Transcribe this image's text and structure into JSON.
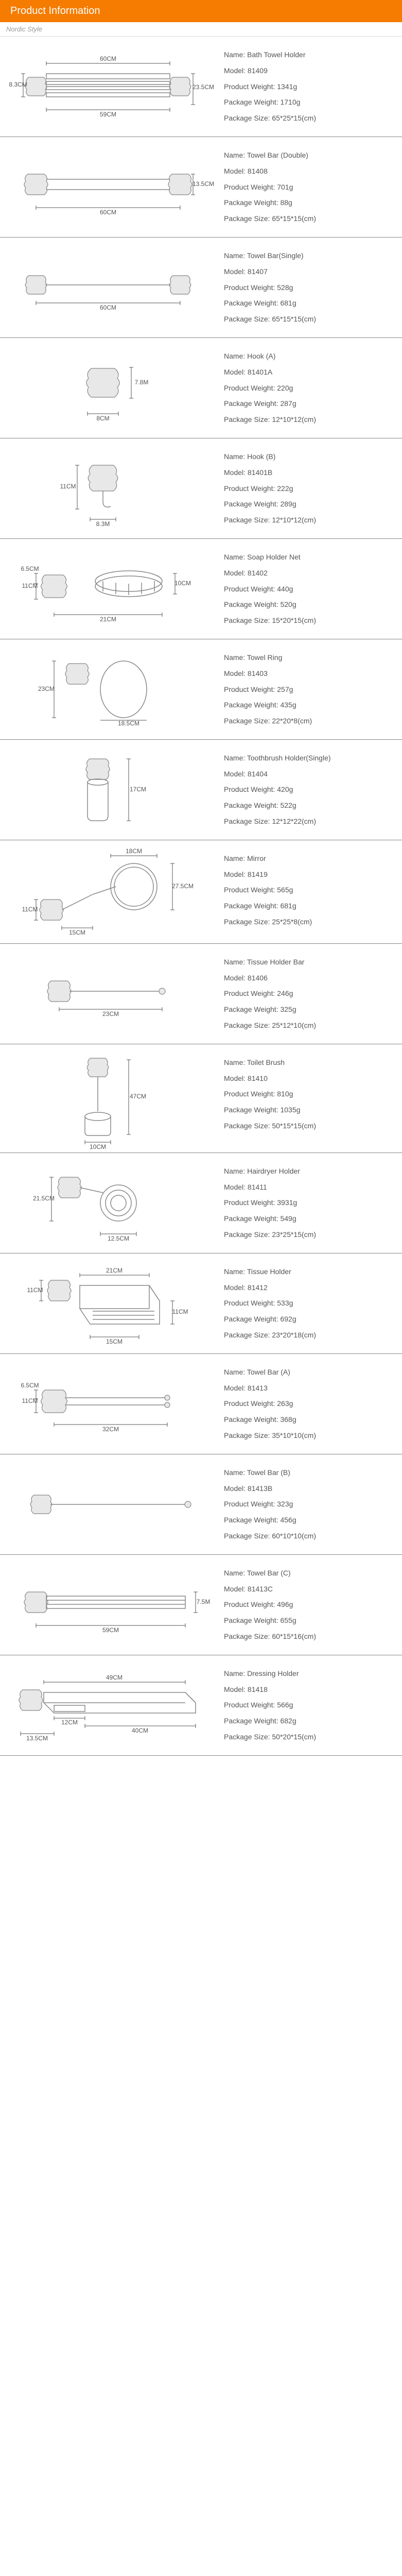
{
  "header": {
    "title": "Product Information",
    "subtitle": "Nordic Style"
  },
  "products": [
    {
      "sketch": "bath-towel-holder",
      "dims": {
        "w1": "60CM",
        "w2": "59CM",
        "h1": "8.3CM",
        "h2": "23.5CM"
      },
      "info": {
        "name": "Bath Towel Holder",
        "model": "81409",
        "product_weight": "1341g",
        "package_weight": "1710g",
        "package_size": "65*25*15(cm)"
      }
    },
    {
      "sketch": "towel-bar-double",
      "dims": {
        "w": "60CM",
        "h": "13.5CM"
      },
      "info": {
        "name": "Towel Bar (Double)",
        "model": "81408",
        "product_weight": "701g",
        "package_weight": "88g",
        "package_size": "65*15*15(cm)"
      }
    },
    {
      "sketch": "towel-bar-single",
      "dims": {
        "w": "60CM"
      },
      "info": {
        "name": "Towel Bar(Single)",
        "model": "81407",
        "product_weight": "528g",
        "package_weight": "681g",
        "package_size": "65*15*15(cm)"
      }
    },
    {
      "sketch": "hook-a",
      "dims": {
        "w": "8CM",
        "h": "7.8M"
      },
      "info": {
        "name": "Hook (A)",
        "model": "81401A",
        "product_weight": "220g",
        "package_weight": "287g",
        "package_size": "12*10*12(cm)"
      }
    },
    {
      "sketch": "hook-b",
      "dims": {
        "w": "8.3M",
        "h": "11CM"
      },
      "info": {
        "name": "Hook (B)",
        "model": "81401B",
        "product_weight": "222g",
        "package_weight": "289g",
        "package_size": "12*10*12(cm)"
      }
    },
    {
      "sketch": "soap-holder-net",
      "dims": {
        "w": "21CM",
        "h": "11CM",
        "h2": "6.5CM",
        "h3": "10CM"
      },
      "info": {
        "name": "Soap Holder Net",
        "model": "81402",
        "product_weight": "440g",
        "package_weight": "520g",
        "package_size": "15*20*15(cm)"
      }
    },
    {
      "sketch": "towel-ring",
      "dims": {
        "w": "18.5CM",
        "h": "23CM"
      },
      "info": {
        "name": "Towel Ring",
        "model": "81403",
        "product_weight": "257g",
        "package_weight": "435g",
        "package_size": "22*20*8(cm)"
      }
    },
    {
      "sketch": "toothbrush-holder",
      "dims": {
        "h": "17CM"
      },
      "info": {
        "name": "Toothbrush Holder(Single)",
        "model": "81404",
        "product_weight": "420g",
        "package_weight": "522g",
        "package_size": "12*12*22(cm)"
      }
    },
    {
      "sketch": "mirror",
      "dims": {
        "w": "18CM",
        "w2": "15CM",
        "h": "27.5CM",
        "h2": "11CM"
      },
      "info": {
        "name": "Mirror",
        "model": "81419",
        "product_weight": "565g",
        "package_weight": "681g",
        "package_size": "25*25*8(cm)"
      }
    },
    {
      "sketch": "tissue-holder-bar",
      "dims": {
        "w": "23CM"
      },
      "info": {
        "name": "Tissue Holder Bar",
        "model": "81406",
        "product_weight": "246g",
        "package_weight": "325g",
        "package_size": "25*12*10(cm)"
      }
    },
    {
      "sketch": "toilet-brush",
      "dims": {
        "w": "10CM",
        "h": "47CM"
      },
      "info": {
        "name": "Toilet Brush",
        "model": "81410",
        "product_weight": "810g",
        "package_weight": "1035g",
        "package_size": "50*15*15(cm)"
      }
    },
    {
      "sketch": "hairdryer-holder",
      "dims": {
        "w": "12.5CM",
        "h": "21.5CM"
      },
      "info": {
        "name": "Hairdryer Holder",
        "model": "81411",
        "product_weight": "3931g",
        "package_weight": "549g",
        "package_size": "23*25*15(cm)"
      }
    },
    {
      "sketch": "tissue-holder",
      "dims": {
        "w": "21CM",
        "w2": "15CM",
        "h": "11CM",
        "h2": "11CM"
      },
      "info": {
        "name": "Tissue Holder",
        "model": "81412",
        "product_weight": "533g",
        "package_weight": "692g",
        "package_size": "23*20*18(cm)"
      }
    },
    {
      "sketch": "towel-bar-a",
      "dims": {
        "w": "32CM",
        "h": "11CM",
        "h2": "6.5CM"
      },
      "info": {
        "name": "Towel Bar (A)",
        "model": "81413",
        "product_weight": "263g",
        "package_weight": "368g",
        "package_size": "35*10*10(cm)"
      }
    },
    {
      "sketch": "towel-bar-b",
      "dims": {},
      "info": {
        "name": "Towel Bar (B)",
        "model": "81413B",
        "product_weight": "323g",
        "package_weight": "456g",
        "package_size": "60*10*10(cm)"
      }
    },
    {
      "sketch": "towel-bar-c",
      "dims": {
        "w": "59CM",
        "h": "7.5M"
      },
      "info": {
        "name": "Towel Bar (C)",
        "model": "81413C",
        "product_weight": "496g",
        "package_weight": "655g",
        "package_size": "60*15*16(cm)"
      }
    },
    {
      "sketch": "dressing-holder",
      "dims": {
        "w1": "49CM",
        "w2": "40CM",
        "w3": "12CM",
        "w4": "13.5CM"
      },
      "info": {
        "name": "Dressing Holder",
        "model": "81418",
        "product_weight": "566g",
        "package_weight": "682g",
        "package_size": "50*20*15(cm)"
      }
    }
  ]
}
